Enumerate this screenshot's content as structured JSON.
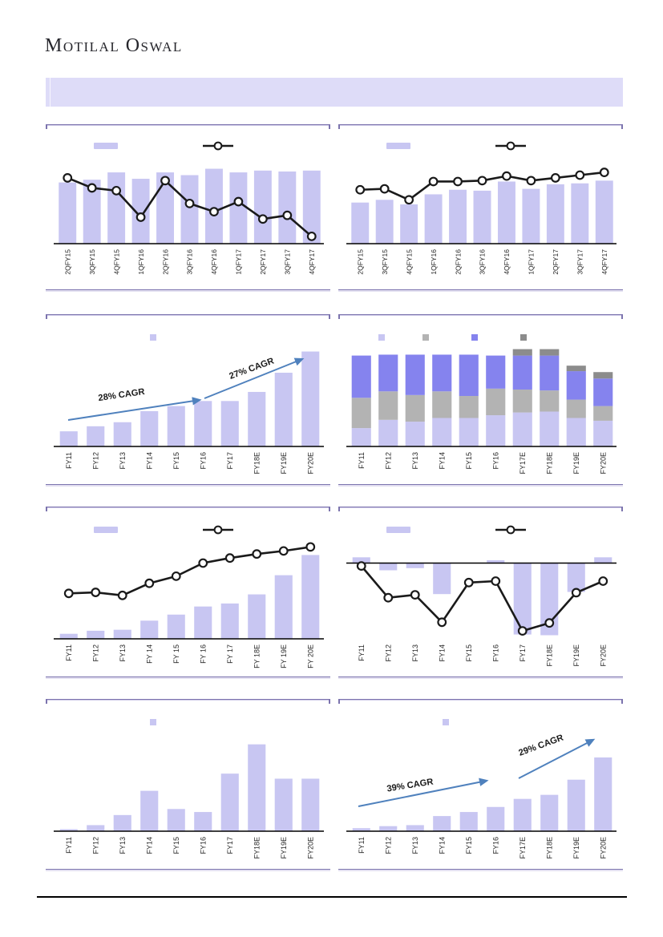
{
  "brand": {
    "name": "Motilal Oswal"
  },
  "banner": {
    "text": ""
  },
  "colors": {
    "banner_bg": "#dedcf8",
    "panel_border": "#7c74ae",
    "panel_border_light": "#cdc9e6",
    "panel_border_shadow": "#e3e0f1",
    "bar": "#c8c6f2",
    "line": "#1a1a1a",
    "marker_fill": "#ffffff",
    "stack": [
      "#c8c6f2",
      "#b3b3b3",
      "#8583ee",
      "#8c8c8c"
    ],
    "arrow": "#4f81bd",
    "axis": "#000000",
    "axis_label": "#262626",
    "annotation_text": "#1a1a1a"
  },
  "note": "No axis scales, chart titles or legend labels are visible in the pixels; series values below are relative units (0-100 of plot height) read from bar/line geometry.",
  "chart_data": [
    {
      "name": "quarterly-bar-line-top-left",
      "type": "bar-line",
      "geometry": "quarterly",
      "legend": "bar-line",
      "categories": [
        "2QFY15",
        "3QFY15",
        "4QFY15",
        "1QFY16",
        "2QFY16",
        "3QFY16",
        "4QFY16",
        "1QFY17",
        "2QFY17",
        "3QFY17",
        "4QFY17"
      ],
      "bar_values": [
        67,
        70,
        78,
        71,
        78,
        75,
        82,
        78,
        80,
        79,
        80
      ],
      "line_values": [
        72,
        61,
        58,
        29,
        69,
        44,
        35,
        46,
        27,
        31,
        8
      ],
      "ylim": [
        0,
        100
      ]
    },
    {
      "name": "quarterly-bar-line-top-right",
      "type": "bar-line",
      "geometry": "quarterly",
      "legend": "bar-line",
      "categories": [
        "2QFY15",
        "3QFY15",
        "4QFY15",
        "1QFY16",
        "2QFY16",
        "3QFY16",
        "4QFY16",
        "1QFY17",
        "2QFY17",
        "3QFY17",
        "4QFY17"
      ],
      "bar_values": [
        45,
        48,
        43,
        54,
        59,
        58,
        68,
        60,
        65,
        66,
        69
      ],
      "line_values": [
        59,
        60,
        48,
        68,
        68,
        69,
        74,
        69,
        72,
        75,
        78
      ],
      "ylim": [
        0,
        100
      ]
    },
    {
      "name": "annual-bar-cagr-left",
      "type": "bar",
      "geometry": "yearly",
      "legend": "single-square",
      "categories": [
        "FY11",
        "FY12",
        "FY13",
        "FY14",
        "FY15",
        "FY16",
        "FY17",
        "FY18E",
        "FY19E",
        "FY20E"
      ],
      "bar_values": [
        15,
        20,
        24,
        35,
        40,
        45,
        45,
        54,
        73,
        94
      ],
      "ylim": [
        0,
        100
      ],
      "annotations": [
        {
          "text": "28% CAGR",
          "x": 95,
          "y": 103,
          "rotate": -8,
          "arrow": [
            28,
            131,
            192,
            106
          ]
        },
        {
          "text": "27% CAGR",
          "x": 258,
          "y": 70,
          "rotate": -20,
          "arrow": [
            198,
            104,
            320,
            55
          ]
        }
      ]
    },
    {
      "name": "annual-stacked-bar",
      "type": "stacked-bar",
      "geometry": "yearly",
      "legend": "four-squares",
      "categories": [
        "FY11",
        "FY12",
        "FY13",
        "FY14",
        "FY15",
        "FY16",
        "FY17E",
        "FY18E",
        "FY19E",
        "FY20E"
      ],
      "stack_series": [
        {
          "name": "segment-1",
          "values": [
            20,
            29,
            27,
            31,
            31,
            34,
            37,
            38,
            31,
            28
          ]
        },
        {
          "name": "segment-2",
          "values": [
            33,
            31,
            29,
            29,
            24,
            29,
            25,
            23,
            20,
            16
          ]
        },
        {
          "name": "segment-3",
          "values": [
            46,
            40,
            44,
            40,
            45,
            36,
            37,
            38,
            31,
            30
          ]
        },
        {
          "name": "segment-4",
          "values": [
            0,
            0,
            0,
            0,
            0,
            0,
            7,
            7,
            6,
            7
          ]
        }
      ],
      "ylim": [
        0,
        110
      ]
    },
    {
      "name": "annual-bar-line-left",
      "type": "bar-line",
      "geometry": "yearly",
      "legend": "bar-line",
      "categories": [
        "FY11",
        "FY12",
        "FY13",
        "FY 14",
        "FY 15",
        "FY 16",
        "FY 17",
        "FY 18E",
        "FY 19E",
        "FY 20E"
      ],
      "bar_values": [
        5,
        8,
        9,
        18,
        24,
        32,
        35,
        44,
        63,
        83
      ],
      "line_values": [
        45,
        46,
        43,
        55,
        62,
        75,
        80,
        84,
        87,
        91
      ],
      "ylim": [
        0,
        100
      ]
    },
    {
      "name": "annual-bar-line-negative",
      "type": "bar-line",
      "geometry": "yearly",
      "legend": "bar-line",
      "categories": [
        "FY11",
        "FY12",
        "FY13",
        "FY14",
        "FY15",
        "FY16",
        "FY17",
        "FY18E",
        "FY19E",
        "FY20E"
      ],
      "bar_values": [
        8,
        -10,
        -7,
        -43,
        0,
        4,
        -99,
        -100,
        -40,
        8
      ],
      "line_values": [
        -4,
        -48,
        -44,
        -82,
        -27,
        -25,
        -94,
        -83,
        -41,
        -25
      ],
      "ylim": [
        -105,
        35
      ]
    },
    {
      "name": "annual-bar-bottom-left",
      "type": "bar",
      "geometry": "yearly",
      "legend": "single-square",
      "categories": [
        "FY11",
        "FY12",
        "FY13",
        "FY14",
        "FY15",
        "FY16",
        "FY17",
        "FY18E",
        "FY19E",
        "FY20E"
      ],
      "bar_values": [
        2,
        6,
        16,
        40,
        22,
        19,
        57,
        86,
        52,
        52
      ],
      "ylim": [
        0,
        100
      ]
    },
    {
      "name": "annual-bar-cagr-right",
      "type": "bar",
      "geometry": "yearly",
      "legend": "single-square",
      "categories": [
        "FY11",
        "FY12",
        "FY13",
        "FY14",
        "FY15",
        "FY16",
        "FY17E",
        "FY18E",
        "FY19E",
        "FY20E"
      ],
      "bar_values": [
        3,
        5,
        6,
        15,
        19,
        24,
        32,
        36,
        51,
        73
      ],
      "ylim": [
        0,
        100
      ],
      "annotations": [
        {
          "text": "39% CAGR",
          "x": 90,
          "y": 110,
          "rotate": -9,
          "arrow": [
            25,
            133,
            185,
            101
          ]
        },
        {
          "text": "29% CAGR",
          "x": 254,
          "y": 60,
          "rotate": -20,
          "arrow": [
            225,
            98,
            318,
            50
          ]
        }
      ]
    }
  ]
}
